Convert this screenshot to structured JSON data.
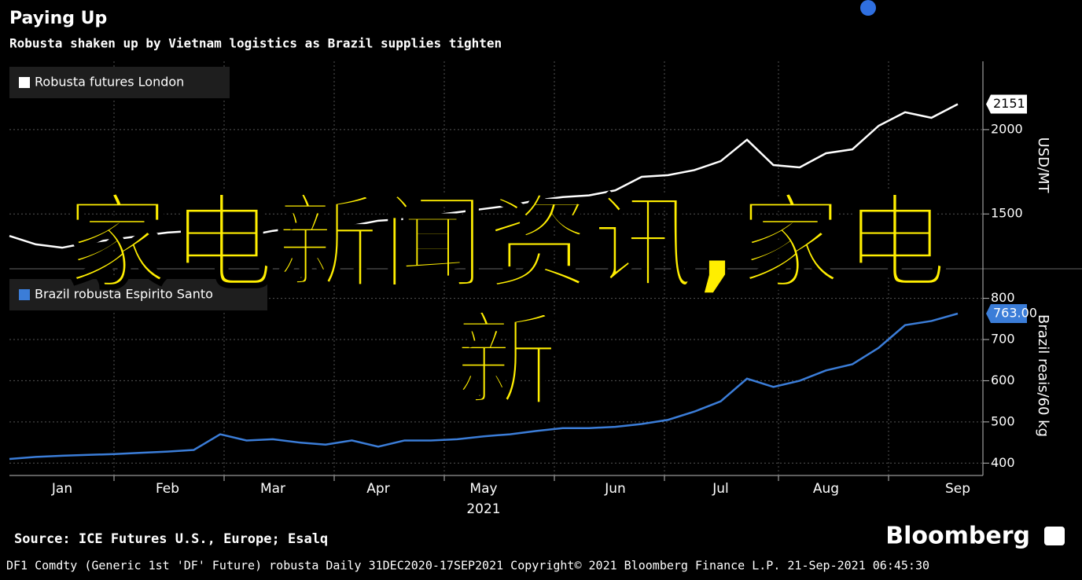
{
  "title": "Paying Up",
  "subtitle": "Robusta shaken up by Vietnam logistics as Brazil supplies tighten",
  "source": "Source: ICE Futures U.S., Europe; Esalq",
  "brand": "Bloomberg",
  "footer": "DF1 Comdty (Generic 1st 'DF' Future) robusta  Daily 31DEC2020-17SEP2021  Copyright© 2021 Bloomberg Finance L.P.  21-Sep-2021 06:45:30",
  "overlay_text": "家电新闻资讯,家电新",
  "chart_data": [
    {
      "type": "line",
      "y_label": "USD/MT",
      "ylim": [
        1175,
        2405
      ],
      "yticks": [
        1500,
        2000
      ],
      "grid": true,
      "series": [
        {
          "name": "Robusta futures London",
          "color": "#ffffff",
          "values": [
            1370,
            1320,
            1300,
            1330,
            1350,
            1370,
            1390,
            1400,
            1380,
            1370,
            1400,
            1420,
            1410,
            1430,
            1460,
            1470,
            1490,
            1510,
            1530,
            1550,
            1580,
            1600,
            1610,
            1640,
            1720,
            1730,
            1760,
            1813,
            1940,
            1790,
            1776,
            1860,
            1883,
            2023,
            2103,
            2070,
            2151
          ]
        }
      ]
    },
    {
      "type": "line",
      "y_label": "Brazil reais/60 kg",
      "x_label": "2021",
      "ylim": [
        370,
        866
      ],
      "yticks": [
        400,
        500,
        600,
        700,
        800
      ],
      "grid": true,
      "categories": [
        null,
        null,
        "Jan",
        null,
        null,
        null,
        "Feb",
        null,
        null,
        null,
        "Mar",
        null,
        null,
        null,
        "Apr",
        null,
        null,
        null,
        "May",
        null,
        null,
        null,
        null,
        "Jun",
        null,
        null,
        null,
        "Jul",
        null,
        null,
        null,
        "Aug",
        null,
        null,
        null,
        null,
        "Sep"
      ],
      "series": [
        {
          "name": "Brazil robusta Espirito Santo",
          "color": "#3b7dd8",
          "values": [
            410,
            415,
            418,
            420,
            422,
            425,
            428,
            432,
            470,
            455,
            458,
            450,
            445,
            455,
            440,
            455,
            455,
            458,
            465,
            470,
            478,
            485,
            485,
            488,
            495,
            505,
            525,
            550,
            605,
            585,
            600,
            625,
            640,
            680,
            735,
            745,
            763
          ],
          "value_labels": [
            null,
            null,
            null,
            null,
            null,
            null,
            null,
            null,
            null,
            null,
            null,
            null,
            null,
            null,
            null,
            null,
            null,
            null,
            null,
            null,
            null,
            null,
            null,
            null,
            null,
            null,
            null,
            null,
            null,
            null,
            null,
            null,
            null,
            null,
            null,
            null,
            "763.00"
          ]
        }
      ]
    }
  ]
}
